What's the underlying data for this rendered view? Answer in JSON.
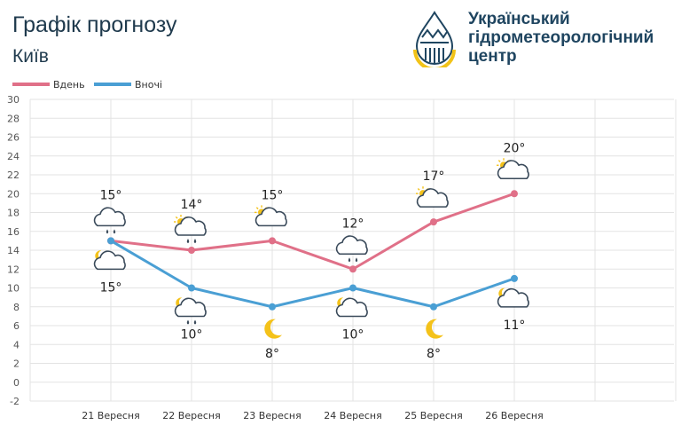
{
  "header": {
    "title": "Графік прогнозу",
    "city": "Київ",
    "org_lines": [
      "Український",
      "гідрометеорологічний",
      "центр"
    ]
  },
  "legend": {
    "day_label": "Вдень",
    "night_label": "Вночі"
  },
  "colors": {
    "day": "#e07088",
    "night": "#4a9fd4",
    "grid": "#e3e3e3",
    "text": "#1f3a4d"
  },
  "chart_data": {
    "type": "line",
    "categories": [
      "21 Вересня",
      "22 Вересня",
      "23 Вересня",
      "24 Вересня",
      "25 Вересня",
      "26 Вересня"
    ],
    "ylim": [
      -2,
      30
    ],
    "yticks": [
      -2,
      0,
      2,
      4,
      6,
      8,
      10,
      12,
      14,
      16,
      18,
      20,
      22,
      24,
      26,
      28,
      30
    ],
    "grid": true,
    "legend_position": "top-left",
    "series": [
      {
        "name": "Вдень",
        "values": [
          15,
          14,
          15,
          12,
          17,
          20
        ],
        "labels": [
          "15°",
          "14°",
          "15°",
          "12°",
          "17°",
          "20°"
        ],
        "icons": [
          "cloud-rain-icon",
          "sun-cloud-rain-icon",
          "sun-cloud-icon",
          "cloud-rain-icon",
          "sun-cloud-icon",
          "sun-cloud-icon"
        ]
      },
      {
        "name": "Вночі",
        "values": [
          15,
          10,
          8,
          10,
          8,
          11
        ],
        "labels": [
          "15°",
          "10°",
          "8°",
          "10°",
          "8°",
          "11°"
        ],
        "icons": [
          "moon-cloud-icon",
          "moon-cloud-rain-icon",
          "moon-icon",
          "moon-cloud-icon",
          "moon-icon",
          "moon-cloud-icon"
        ]
      }
    ]
  }
}
